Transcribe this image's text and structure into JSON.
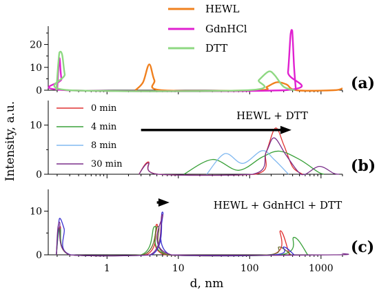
{
  "chart_data": {
    "type": "line",
    "xlabel": "d, nm",
    "ylabel": "Intensity, a.u.",
    "x_scale": "log",
    "xlim": [
      0.15,
      2000
    ],
    "x_ticks": [
      {
        "value": 1,
        "label": "1"
      },
      {
        "value": 10,
        "label": "10"
      },
      {
        "value": 100,
        "label": "100"
      },
      {
        "value": 1000,
        "label": "1000"
      }
    ],
    "panels": [
      {
        "label": "(a)",
        "ylim": [
          0,
          28
        ],
        "y_ticks": [
          0,
          10,
          20
        ],
        "legend": "top-center",
        "annotation": "",
        "series": [
          {
            "name": "HEWL",
            "color": "#f0801e",
            "points": [
              [
                2.5,
                0
              ],
              [
                3.2,
                3.5
              ],
              [
                3.9,
                11.3
              ],
              [
                4.6,
                4.5
              ],
              [
                5.8,
                0
              ],
              [
                130,
                0
              ],
              [
                175,
                1.5
              ],
              [
                240,
                3.5
              ],
              [
                330,
                2.5
              ],
              [
                450,
                0
              ],
              [
                1500,
                0
              ],
              [
                2000,
                0.8
              ]
            ]
          },
          {
            "name": "GdnHCl",
            "color": "#e020d0",
            "points": [
              [
                0.2,
                0
              ],
              [
                0.215,
                14
              ],
              [
                0.23,
                5
              ],
              [
                0.27,
                0
              ],
              [
                310,
                0
              ],
              [
                345,
                8
              ],
              [
                375,
                24.5
              ],
              [
                395,
                26
              ],
              [
                420,
                10
              ],
              [
                445,
                0
              ]
            ]
          },
          {
            "name": "DTT",
            "color": "#8ed882",
            "points": [
              [
                0.195,
                0
              ],
              [
                0.215,
                16.5
              ],
              [
                0.235,
                15.5
              ],
              [
                0.255,
                7
              ],
              [
                0.29,
                0
              ],
              [
                95,
                0
              ],
              [
                135,
                4.5
              ],
              [
                185,
                8.2
              ],
              [
                225,
                6.5
              ],
              [
                300,
                1.5
              ],
              [
                430,
                0
              ]
            ]
          }
        ]
      },
      {
        "label": "(b)",
        "ylim": [
          0,
          15
        ],
        "y_ticks": [
          0,
          10
        ],
        "legend": "top-left",
        "annotation": "HEWL + DTT",
        "series": [
          {
            "name": "0 min",
            "color": "#e03030",
            "points": [
              [
                2.8,
                0
              ],
              [
                3.8,
                2.5
              ],
              [
                5.2,
                0
              ],
              [
                120,
                0
              ],
              [
                170,
                4.5
              ],
              [
                230,
                9.4
              ],
              [
                300,
                6
              ],
              [
                400,
                1.5
              ],
              [
                550,
                0
              ]
            ]
          },
          {
            "name": "4 min",
            "color": "#38a038",
            "points": [
              [
                12,
                0
              ],
              [
                30,
                3
              ],
              [
                70,
                0.8
              ],
              [
                150,
                3.5
              ],
              [
                260,
                4.7
              ],
              [
                500,
                3
              ],
              [
                900,
                0.5
              ],
              [
                1100,
                0
              ]
            ]
          },
          {
            "name": "8 min",
            "color": "#80b8f0",
            "points": [
              [
                25,
                0
              ],
              [
                45,
                4.2
              ],
              [
                80,
                2.2
              ],
              [
                150,
                4.8
              ],
              [
                220,
                3
              ],
              [
                350,
                0
              ]
            ]
          },
          {
            "name": "30 min",
            "color": "#7a2e8a",
            "points": [
              [
                2.8,
                0
              ],
              [
                3.8,
                2.3
              ],
              [
                5.2,
                0
              ],
              [
                110,
                0
              ],
              [
                170,
                4.5
              ],
              [
                220,
                7.4
              ],
              [
                320,
                4
              ],
              [
                480,
                0.5
              ],
              [
                600,
                0
              ],
              [
                950,
                1.6
              ],
              [
                1500,
                0.2
              ],
              [
                1800,
                0
              ]
            ]
          }
        ]
      },
      {
        "label": "(c)",
        "ylim": [
          0,
          15
        ],
        "y_ticks": [
          0,
          10
        ],
        "legend": "",
        "annotation": "HEWL + GdnHCl + DTT",
        "series": [
          {
            "name": "",
            "color": "#e03030",
            "points": [
              [
                0.195,
                0
              ],
              [
                0.22,
                6.5
              ],
              [
                0.3,
                0
              ],
              [
                3.5,
                0
              ],
              [
                5,
                7
              ],
              [
                6.5,
                0
              ],
              [
                200,
                0
              ],
              [
                270,
                5.5
              ],
              [
                360,
                0
              ]
            ]
          },
          {
            "name": "",
            "color": "#38a038",
            "points": [
              [
                0.195,
                0
              ],
              [
                0.22,
                6
              ],
              [
                0.3,
                0
              ],
              [
                3,
                0
              ],
              [
                4.7,
                6.5
              ],
              [
                7,
                0
              ],
              [
                270,
                0
              ],
              [
                420,
                4
              ],
              [
                650,
                0
              ]
            ]
          },
          {
            "name": "",
            "color": "#6a6a2a",
            "points": [
              [
                0.195,
                0
              ],
              [
                0.215,
                6
              ],
              [
                0.3,
                0
              ],
              [
                3.2,
                0
              ],
              [
                5.2,
                6.5
              ],
              [
                7.2,
                0
              ],
              [
                180,
                0
              ],
              [
                260,
                1.8
              ],
              [
                380,
                0
              ]
            ]
          },
          {
            "name": "",
            "color": "#3a30d0",
            "points": [
              [
                0.195,
                0
              ],
              [
                0.215,
                8.3
              ],
              [
                0.25,
                6
              ],
              [
                0.31,
                0
              ],
              [
                4.2,
                0
              ],
              [
                6,
                9.8
              ],
              [
                7.8,
                0
              ],
              [
                220,
                0
              ],
              [
                300,
                1.8
              ],
              [
                420,
                0
              ]
            ]
          },
          {
            "name": "",
            "color": "#7a2e8a",
            "points": [
              [
                0.195,
                0
              ],
              [
                0.215,
                7.5
              ],
              [
                0.3,
                0
              ],
              [
                4,
                0
              ],
              [
                6,
                9.2
              ],
              [
                8,
                0
              ],
              [
                1500,
                0
              ],
              [
                2000,
                0.3
              ]
            ]
          }
        ]
      }
    ]
  }
}
